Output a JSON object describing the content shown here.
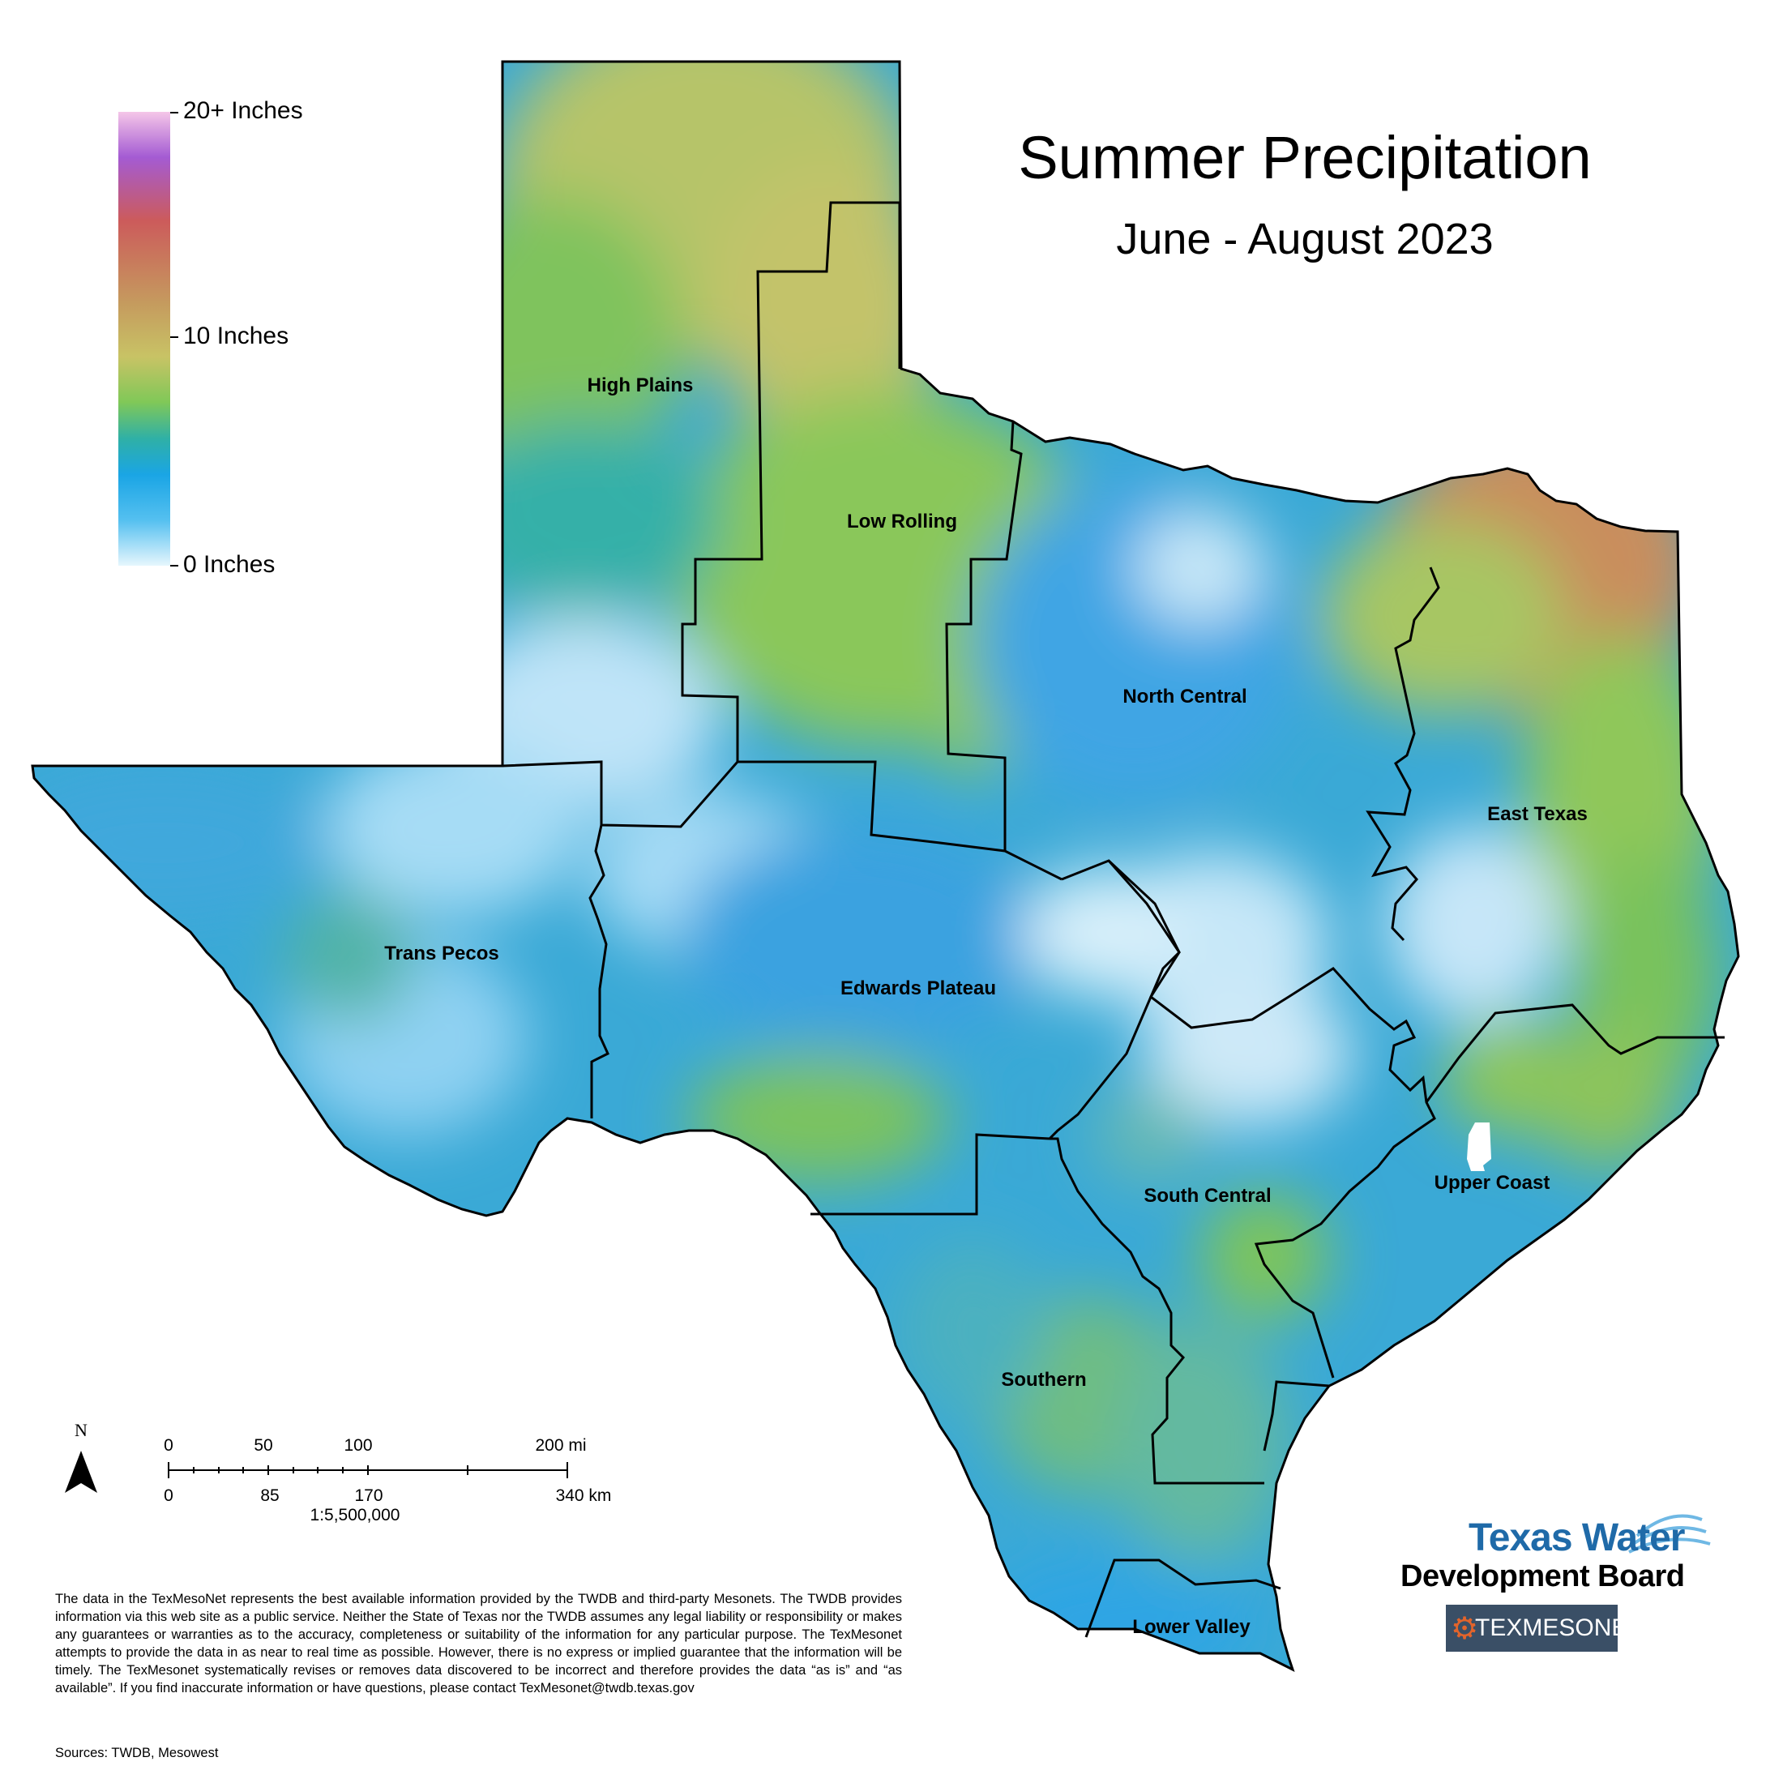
{
  "title": "Summer Precipitation",
  "subtitle": "June - August 2023",
  "legend": {
    "labels": [
      "20+ Inches",
      "10 Inches",
      "0 Inches"
    ]
  },
  "regions": [
    {
      "name": "High Plains"
    },
    {
      "name": "Low Rolling"
    },
    {
      "name": "North Central"
    },
    {
      "name": "East Texas"
    },
    {
      "name": "Trans Pecos"
    },
    {
      "name": "Edwards Plateau"
    },
    {
      "name": "South Central"
    },
    {
      "name": "Upper Coast"
    },
    {
      "name": "Southern"
    },
    {
      "name": "Lower Valley"
    }
  ],
  "scale_bar": {
    "mi_labels": [
      "0",
      "50",
      "100",
      "200 mi"
    ],
    "km_labels": [
      "0",
      "85",
      "170",
      "340 km"
    ],
    "ratio": "1:5,500,000"
  },
  "north_arrow": {
    "letter": "N"
  },
  "disclaimer": "The data in the TexMesoNet represents the best available information provided by the TWDB and third-party Mesonets. The TWDB provides information via this web site as a public service. Neither the State of Texas nor the TWDB assumes any legal liability or responsibility or makes any guarantees or warranties as to the accuracy, completeness or suitability of the information for any particular purpose. The TexMesonet attempts to provide the data in as near to real time as possible. However, there is no express or implied guarantee that the information will be timely. The TexMesonet systematically revises or removes data discovered to be incorrect and therefore provides the data “as is” and “as available”. If you find inaccurate information or have questions, please contact TexMesonet@twdb.texas.gov",
  "sources": "Sources: TWDB, Mesowest",
  "logos": {
    "twdb_line1": "Texas Water",
    "twdb_line2": "Development Board",
    "texmesonet": "TEXMESONET"
  },
  "colors": {
    "dry": "#bfe6fb",
    "low": "#2aa7e6",
    "medium": "#4fb8a0",
    "moderate": "#86c65a",
    "high": "#c7c46a",
    "very_high": "#cf8a5e"
  }
}
